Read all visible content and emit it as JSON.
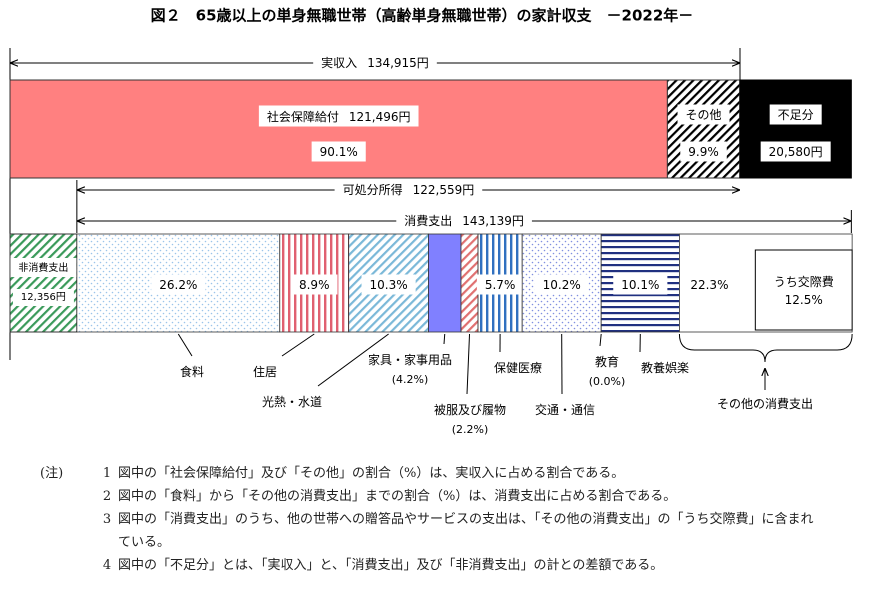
{
  "chart_data": {
    "type": "household-budget",
    "title": "図２　65歳以上の単身無職世帯（高齢単身無職世帯）の家計収支　－2022年－",
    "income": {
      "name": "実収入",
      "value": 134915,
      "value_label": "134,915円"
    },
    "income_parts": [
      {
        "name": "社会保障給付",
        "value": 121496,
        "value_label": "121,496円",
        "share": 90.1,
        "share_label": "90.1%",
        "color": "#ff8080",
        "pattern": "solid"
      },
      {
        "name": "その他",
        "share": 9.9,
        "share_label": "9.9%",
        "color": "#000000",
        "pattern": "hatch"
      }
    ],
    "deficit": {
      "name": "不足分",
      "value": 20580,
      "value_label": "20,580円",
      "color": "#000000"
    },
    "disposable": {
      "name": "可処分所得",
      "value": 122559,
      "value_label": "122,559円"
    },
    "consumption": {
      "name": "消費支出",
      "value": 143139,
      "value_label": "143,139円"
    },
    "non_consumption": {
      "name": "非消費支出",
      "value": 12356,
      "value_label": "12,356円",
      "color": "#3a9a5a",
      "pattern": "hatch"
    },
    "categories": [
      "食料",
      "住居",
      "光熱・水道",
      "家具・家事用品",
      "被服及び履物",
      "保健医療",
      "交通・通信",
      "教育",
      "教養娯楽",
      "その他の消費支出"
    ],
    "values": [
      26.2,
      8.9,
      10.3,
      4.2,
      2.2,
      5.7,
      10.2,
      0.0,
      10.1,
      22.3
    ],
    "value_labels": [
      "26.2%",
      "8.9%",
      "10.3%",
      "(4.2%)",
      "(2.2%)",
      "5.7%",
      "10.2%",
      "(0.0%)",
      "10.1%",
      "22.3%"
    ],
    "colors": [
      "#9cc4ea",
      "#e06070",
      "#7ab8d8",
      "#8080ff",
      "#e07070",
      "#3070c0",
      "#8090e0",
      "#888888",
      "#203080",
      "#ffffff"
    ],
    "patterns": [
      "dots",
      "vstripes",
      "hatch",
      "solid",
      "hatch",
      "vstripes",
      "dots",
      "solid",
      "hstripes",
      "solid"
    ],
    "sub": {
      "name": "うち交際費",
      "value": 12.5,
      "value_label": "12.5%"
    },
    "notes": {
      "label": "(注)",
      "items": [
        {
          "number": 1,
          "text": "図中の「社会保障給付」及び「その他」の割合（%）は、実収入に占める割合である。"
        },
        {
          "number": 2,
          "text": "図中の「食料」から「その他の消費支出」までの割合（%）は、消費支出に占める割合である。"
        },
        {
          "number": 3,
          "text": "図中の「消費支出」のうち、他の世帯への贈答品やサービスの支出は、「その他の消費支出」の「うち交際費」に含まれている。"
        },
        {
          "number": 4,
          "text": "図中の「不足分」とは、「実収入」と、「消費支出」及び「非消費支出」の計との差額である。"
        }
      ]
    }
  }
}
